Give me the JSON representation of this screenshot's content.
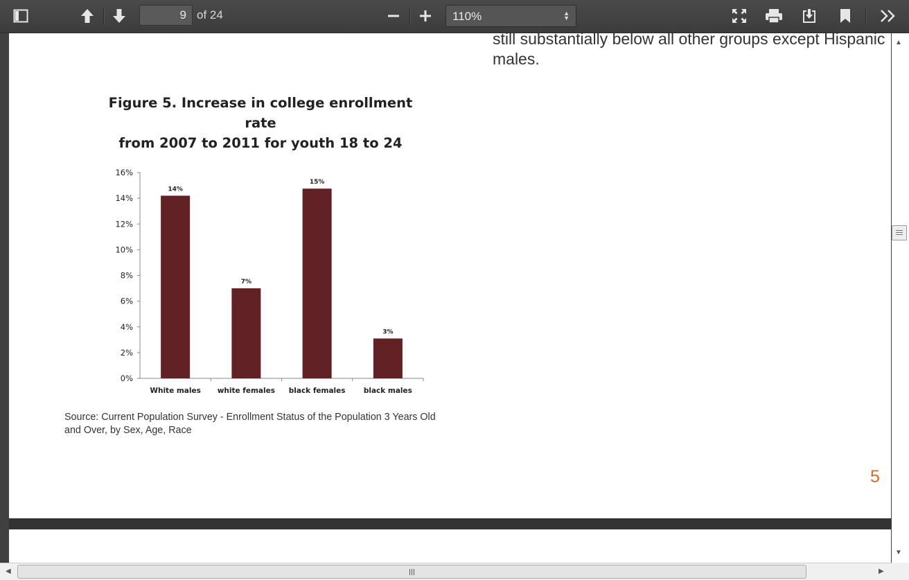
{
  "toolbar": {
    "page_current": "9",
    "page_of": "of 24",
    "zoom": "110%",
    "icons": [
      "sidebar-toggle-icon",
      "previous-page-icon",
      "next-page-icon",
      "zoom-out-icon",
      "zoom-in-icon",
      "presentation-mode-icon",
      "print-icon",
      "download-icon",
      "bookmark-icon",
      "tools-icon"
    ]
  },
  "document": {
    "body_text_line1": "still substantially below all other groups except Hispanic",
    "body_text_line2": "males.",
    "figure_title_line1": "Figure 5. Increase in college enrollment rate",
    "figure_title_line2": "from 2007 to 2011 for youth 18 to 24",
    "source_line1": "Source: Current Population Survey - Enrollment Status of the Population 3 Years Old",
    "source_line2": "and Over, by Sex, Age, Race",
    "page_number": "5"
  },
  "chart_data": {
    "type": "bar",
    "title": "Figure 5. Increase in college enrollment rate from 2007 to 2011 for youth 18 to 24",
    "categories": [
      "White males",
      "white females",
      "black females",
      "black males"
    ],
    "values": [
      14.2,
      7.0,
      14.75,
      3.1
    ],
    "data_labels": [
      "14%",
      "7%",
      "15%",
      "3%"
    ],
    "yticks": [
      "0%",
      "2%",
      "4%",
      "6%",
      "8%",
      "10%",
      "12%",
      "14%",
      "16%"
    ],
    "ylim": [
      0,
      16
    ],
    "bar_color": "#622125",
    "grid": false,
    "legend": "none"
  },
  "colors": {
    "toolbar": "#434343",
    "page_number": "#e06a22",
    "bar": "#622125"
  }
}
